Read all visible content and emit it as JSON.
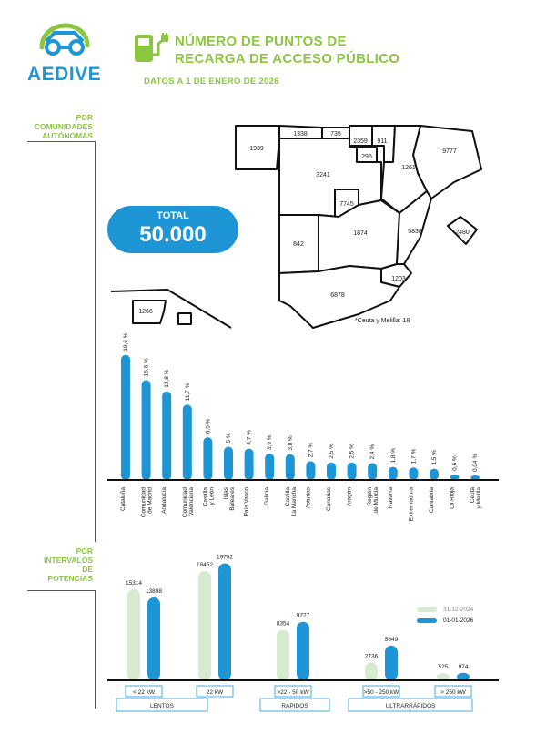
{
  "brand": {
    "name": "AEDIVE"
  },
  "header": {
    "title_line1": "NÚMERO DE PUNTOS DE",
    "title_line2": "RECARGA DE ACCESO PÚBLICO",
    "subtitle": "DATOS A 1 DE ENERO DE 2026"
  },
  "section1": {
    "label_line1": "POR",
    "label_line2": "COMUNIDADES",
    "label_line3": "AUTÓNOMAS"
  },
  "section2": {
    "label_line1": "POR",
    "label_line2": "INTERVALOS",
    "label_line3": "DE",
    "label_line4": "POTENCIAS"
  },
  "total": {
    "label": "TOTAL",
    "value": "50.000"
  },
  "map": {
    "regions": [
      "1939",
      "1338",
      "735",
      "2359",
      "911",
      "295",
      "9777",
      "3241",
      "1261",
      "7745",
      "2480",
      "842",
      "1874",
      "5838",
      "1203",
      "6878",
      "1266"
    ],
    "note": "*Ceuta y Melilla: 18"
  },
  "colors": {
    "blue": "#1e96d6",
    "light_green": "#d6ebd0",
    "green": "#8cc63f"
  },
  "chart_data": [
    {
      "type": "bar",
      "categories": [
        "Cataluña",
        "Comunidad de Madrid",
        "Andalucía",
        "Comunidad Valenciana",
        "Castilla y León",
        "Islas Baleares",
        "País Vasco",
        "Galicia",
        "Castilla La Mancha",
        "Asturias",
        "Canarias",
        "Aragón",
        "Región de Murcia",
        "Navarra",
        "Extremadura",
        "Cantabria",
        "La Rioja",
        "Ceuta y Melilla"
      ],
      "value_labels": [
        "19,6 %",
        "15,6 %",
        "13,8 %",
        "11,7 %",
        "6,5 %",
        "5 %",
        "4,7 %",
        "3,9 %",
        "3,8 %",
        "2,7 %",
        "2,5 %",
        "2,5 %",
        "2,4 %",
        "1,8 %",
        "1,7 %",
        "1,5 %",
        "0,6 %",
        "0,04 %"
      ],
      "values": [
        19.6,
        15.6,
        13.8,
        11.7,
        6.5,
        5,
        4.7,
        3.9,
        3.8,
        2.7,
        2.5,
        2.5,
        2.4,
        1.8,
        1.7,
        1.5,
        0.6,
        0.04
      ],
      "ylim": [
        0,
        20
      ]
    },
    {
      "type": "bar",
      "categories": [
        "< 22 kW",
        "22 kW",
        ">22 - 50 kW",
        ">50 - 250 kW",
        "> 250 kW"
      ],
      "groups": [
        "LENTOS",
        "RÁPIDOS",
        "ULTRARRÁPIDOS"
      ],
      "series": [
        {
          "name": "31-12-2024",
          "values": [
            15314,
            18452,
            8354,
            2736,
            525
          ],
          "labels": [
            "15314",
            "18452",
            "8354",
            "2736",
            "525"
          ],
          "color": "#d6ebd0"
        },
        {
          "name": "01-01-2026",
          "values": [
            13898,
            19752,
            9727,
            5649,
            974
          ],
          "labels": [
            "13898",
            "19752",
            "9727",
            "5649",
            "974"
          ],
          "color": "#1e96d6"
        }
      ],
      "ylim": [
        0,
        20000
      ]
    }
  ]
}
